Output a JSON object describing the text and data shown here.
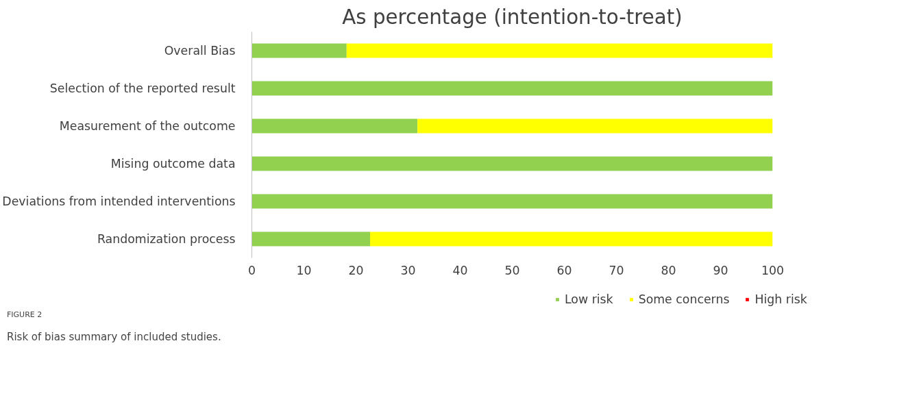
{
  "chart_data": {
    "type": "bar",
    "orientation": "horizontal",
    "stacked": true,
    "title": "As percentage (intention-to-treat)",
    "categories": [
      "Overall Bias",
      "Selection of the reported result",
      "Measurement of the outcome",
      "Mising outcome data",
      "Deviations from intended interventions",
      "Randomization process"
    ],
    "series": [
      {
        "name": "Low risk",
        "color": "#92d050",
        "values": [
          18.2,
          100,
          31.8,
          100,
          100,
          22.7
        ]
      },
      {
        "name": "Some concerns",
        "color": "#ffff00",
        "values": [
          81.8,
          0,
          68.2,
          0,
          0,
          77.3
        ]
      },
      {
        "name": "High risk",
        "color": "#ff0000",
        "values": [
          0,
          0,
          0,
          0,
          0,
          0
        ]
      }
    ],
    "xlim": [
      0,
      100
    ],
    "xticks": [
      0,
      10,
      20,
      30,
      40,
      50,
      60,
      70,
      80,
      90,
      100
    ],
    "grid": false,
    "legend": "bottom",
    "annotations": [
      "FIGURE 2",
      "Risk of bias summary of included studies."
    ]
  }
}
